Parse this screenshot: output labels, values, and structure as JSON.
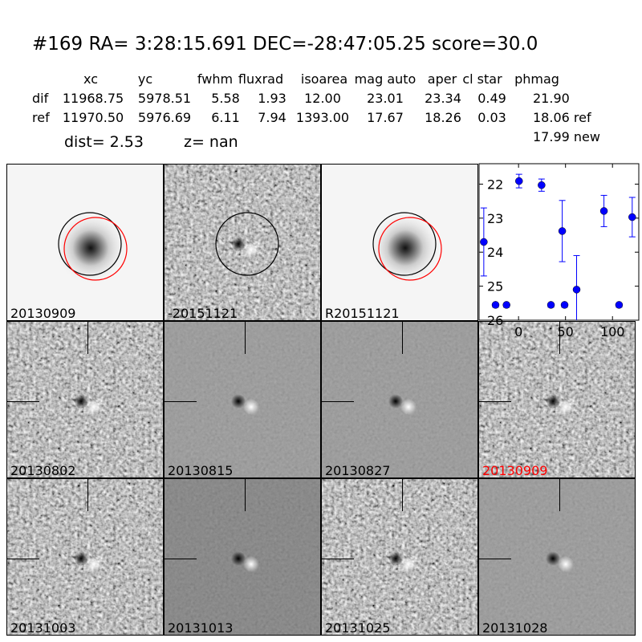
{
  "header": {
    "title": "#169   RA= 3:28:15.691 DEC=-28:47:05.25      score=30.0"
  },
  "table": {
    "columns": [
      "xc",
      "yc",
      "fwhm",
      "fluxrad",
      "isoarea",
      "mag auto",
      "aper",
      "cl star",
      "phmag"
    ],
    "rows": [
      {
        "label": "dif",
        "values": [
          "11968.75",
          "5978.51",
          "5.58",
          "1.93",
          "12.00",
          "23.01",
          "23.34",
          "0.49",
          "21.90"
        ]
      },
      {
        "label": "ref",
        "values": [
          "11970.50",
          "5976.69",
          "6.11",
          "7.94",
          "1393.00",
          "17.67",
          "18.26",
          "0.03",
          "18.06 ref"
        ]
      }
    ],
    "extra_phmag": "17.99 new",
    "dist": "dist=  2.53",
    "z": "z=   nan"
  },
  "panels": [
    {
      "label": "20130909",
      "kind": "ref-star",
      "circles": true
    },
    {
      "label": "-20151121",
      "kind": "diff",
      "circles": true
    },
    {
      "label": "R20151121",
      "kind": "ref-star",
      "circles": true
    },
    {
      "label": "20130802",
      "kind": "noisy"
    },
    {
      "label": "20130815",
      "kind": "smooth"
    },
    {
      "label": "20130827",
      "kind": "smooth"
    },
    {
      "label": "20130909",
      "kind": "diff",
      "label_color": "#ff0000"
    },
    {
      "label": "20131003",
      "kind": "noisy"
    },
    {
      "label": "20131013",
      "kind": "smooth-dark"
    },
    {
      "label": "20131025",
      "kind": "noisy"
    },
    {
      "label": "20131028",
      "kind": "smooth"
    }
  ],
  "colors": {
    "points": "#0000ff",
    "circle_ref": "#000000",
    "circle_new": "#ff0000"
  },
  "chart_data": {
    "type": "scatter",
    "error_bars": true,
    "xlim": [
      -42,
      128
    ],
    "ylim": [
      26,
      21.4
    ],
    "y_inverted": true,
    "xticks": [
      0,
      50,
      100
    ],
    "yticks": [
      22,
      23,
      24,
      25,
      26
    ],
    "points": [
      {
        "x": -37,
        "y": 23.7,
        "err": 1.0
      },
      {
        "x": -24.5,
        "y": 25.55,
        "err": 0
      },
      {
        "x": -12.8,
        "y": 25.55,
        "err": 0
      },
      {
        "x": 0.5,
        "y": 21.91,
        "err": 0.2
      },
      {
        "x": 24.5,
        "y": 22.03,
        "err": 0.18
      },
      {
        "x": 34.5,
        "y": 25.55,
        "err": 0
      },
      {
        "x": 46.5,
        "y": 23.38,
        "err": 0.9
      },
      {
        "x": 49,
        "y": 25.55,
        "err": 0
      },
      {
        "x": 61.8,
        "y": 25.1,
        "err": 1.0
      },
      {
        "x": 90.9,
        "y": 22.79,
        "err": 0.46
      },
      {
        "x": 107,
        "y": 25.55,
        "err": 0
      },
      {
        "x": 121,
        "y": 22.97,
        "err": 0.58
      }
    ]
  }
}
